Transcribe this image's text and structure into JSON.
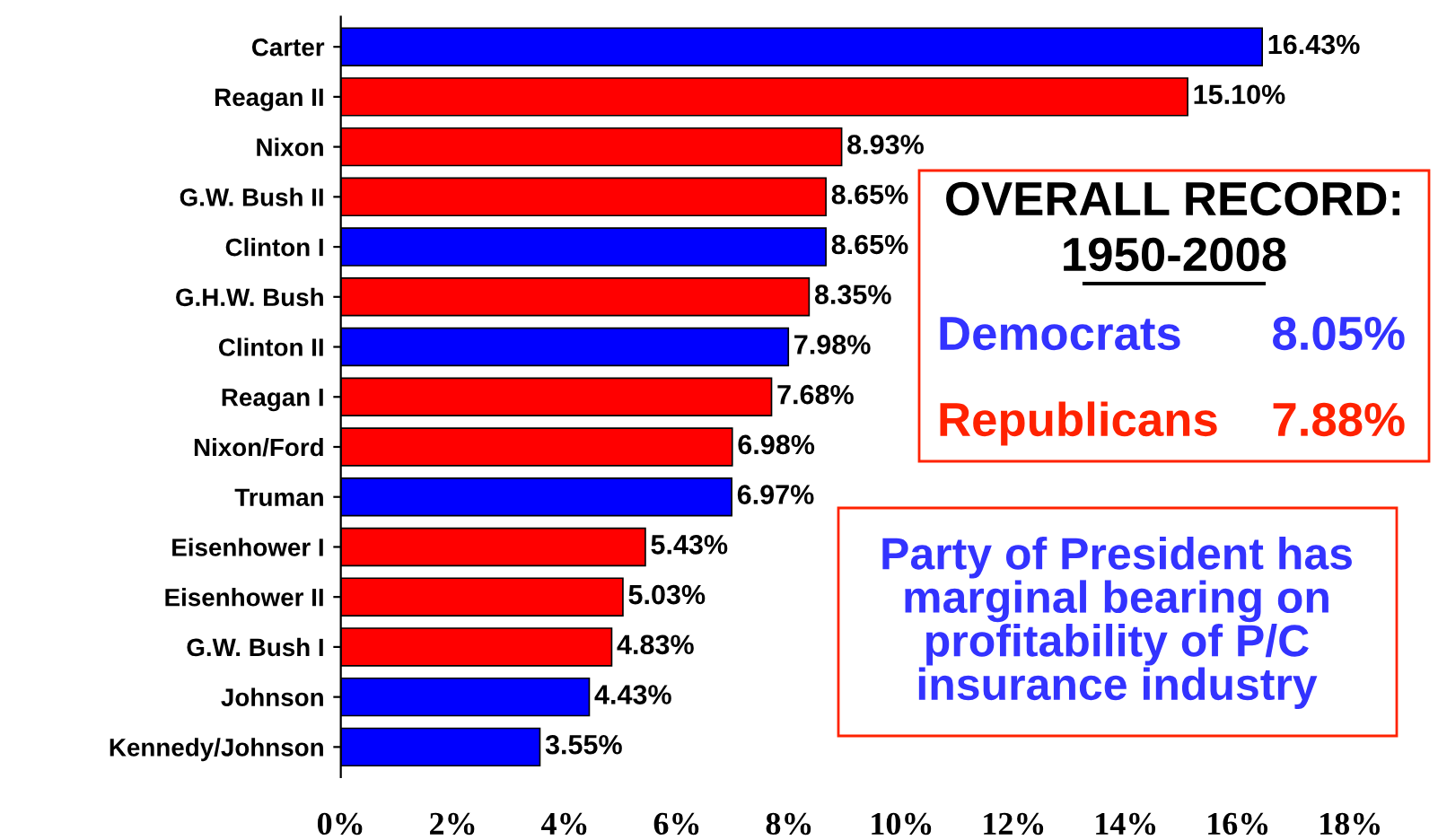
{
  "chart_data": {
    "type": "bar",
    "orientation": "horizontal",
    "categories": [
      "Carter",
      "Reagan II",
      "Nixon",
      "G.W. Bush II",
      "Clinton I",
      "G.H.W. Bush",
      "Clinton II",
      "Reagan I",
      "Nixon/Ford",
      "Truman",
      "Eisenhower I",
      "Eisenhower II",
      "G.W. Bush I",
      "Johnson",
      "Kennedy/Johnson"
    ],
    "values": [
      16.43,
      15.1,
      8.93,
      8.65,
      8.65,
      8.35,
      7.98,
      7.68,
      6.98,
      6.97,
      5.43,
      5.03,
      4.83,
      4.43,
      3.55
    ],
    "colors": [
      "#0000ff",
      "#ff0000",
      "#ff0000",
      "#ff0000",
      "#0000ff",
      "#ff0000",
      "#0000ff",
      "#ff0000",
      "#ff0000",
      "#0000ff",
      "#ff0000",
      "#ff0000",
      "#ff0000",
      "#0000ff",
      "#0000ff"
    ],
    "value_labels": [
      "16.43%",
      "15.10%",
      "8.93%",
      "8.65%",
      "8.65%",
      "8.35%",
      "7.98%",
      "7.68%",
      "6.98%",
      "6.97%",
      "5.43%",
      "5.03%",
      "4.83%",
      "4.43%",
      "3.55%"
    ],
    "xlim": [
      0,
      18
    ],
    "xticks": [
      {
        "value": 0,
        "label": "0%"
      },
      {
        "value": 2,
        "label": "2%"
      },
      {
        "value": 4,
        "label": "4%"
      },
      {
        "value": 6,
        "label": "6%"
      },
      {
        "value": 8,
        "label": "8%"
      },
      {
        "value": 10,
        "label": "10%"
      },
      {
        "value": 12,
        "label": "12%"
      },
      {
        "value": 14,
        "label": "14%"
      },
      {
        "value": 16,
        "label": "16%"
      },
      {
        "value": 18,
        "label": "18%"
      }
    ],
    "grid": false,
    "legend": false,
    "annotations": [
      "OVERALL RECORD:",
      "1950-2008",
      "Democrats",
      "8.05%",
      "Republicans",
      "7.88%",
      "Party of President has\nmarginal bearing on\nprofitability of P/C\ninsurance industry"
    ]
  }
}
